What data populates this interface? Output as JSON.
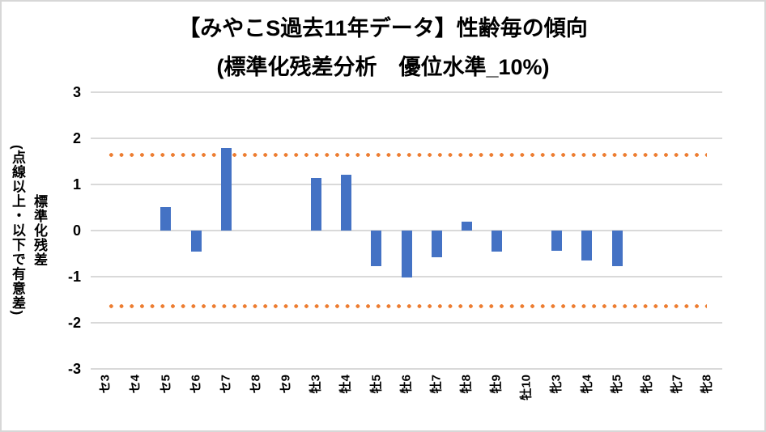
{
  "chart_data": {
    "type": "bar",
    "title": "【みやこS過去11年データ】性齢毎の傾向 (標準化残差分析　優位水準_10%)",
    "title_lines": [
      "【みやこS過去11年データ】性齢毎の傾向",
      "(標準化残差分析　優位水準_10%)"
    ],
    "xlabel": "",
    "ylabel": "標準化残差\n(点線以上・以下で有意差)",
    "categories": [
      "セ3",
      "セ4",
      "セ5",
      "セ6",
      "セ7",
      "セ8",
      "セ9",
      "牡3",
      "牡4",
      "牡5",
      "牡6",
      "牡7",
      "牡8",
      "牡9",
      "牡10",
      "牝3",
      "牝4",
      "牝5",
      "牝6",
      "牝7",
      "牝8"
    ],
    "values": [
      0,
      0,
      0.51,
      -0.46,
      1.79,
      0,
      0,
      1.14,
      1.21,
      -0.77,
      -1.02,
      -0.58,
      0.2,
      -0.45,
      0,
      -0.44,
      -0.65,
      -0.77,
      0,
      0,
      0
    ],
    "ylim": [
      -3,
      3
    ],
    "yticks": [
      3,
      2,
      1,
      0,
      -1,
      -2,
      -3
    ],
    "significance_level_label": "10%",
    "significance_lines": [
      1.645,
      -1.645
    ],
    "grid": true,
    "legend_position": "none",
    "colors": {
      "bar": "#4472c4",
      "significance_dots": "#ed7d31",
      "gridline": "#d9d9d9",
      "text": "#000000",
      "background": "#ffffff",
      "border": "#d7d7d7"
    }
  }
}
